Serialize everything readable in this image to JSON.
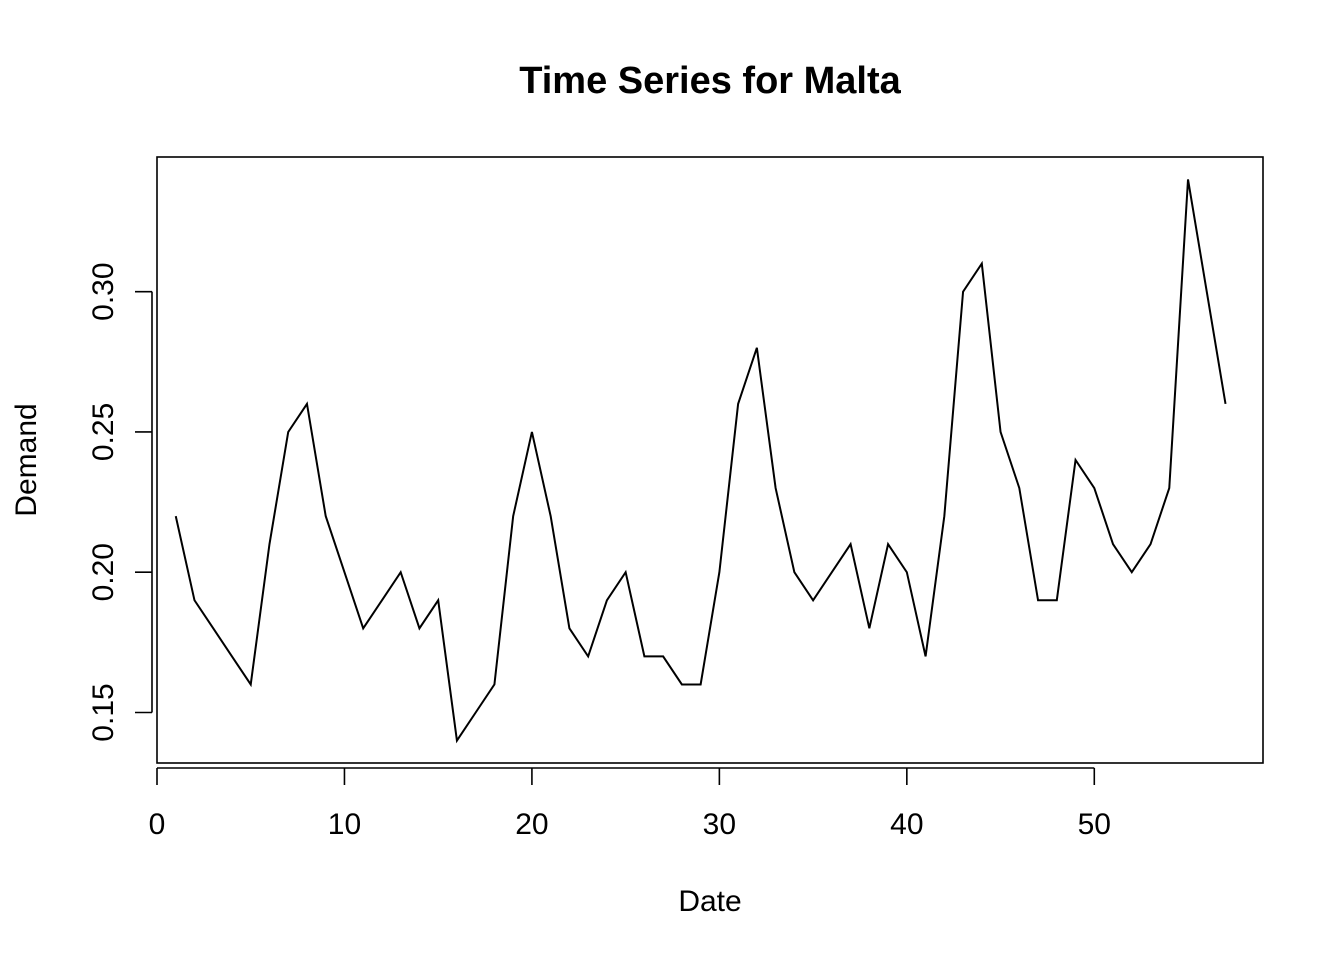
{
  "chart_data": {
    "type": "line",
    "title": "Time Series for Malta",
    "xlabel": "Date",
    "ylabel": "Demand",
    "xlim": [
      0,
      59
    ],
    "ylim": [
      0.132,
      0.348
    ],
    "x_ticks": [
      0,
      10,
      20,
      30,
      40,
      50
    ],
    "x_tick_labels": [
      "0",
      "10",
      "20",
      "30",
      "40",
      "50"
    ],
    "y_ticks": [
      0.15,
      0.2,
      0.25,
      0.3
    ],
    "y_tick_labels": [
      "0.15",
      "0.20",
      "0.25",
      "0.30"
    ],
    "grid": false,
    "series": [
      {
        "x": [
          1,
          2,
          3,
          4,
          5,
          6,
          7,
          8,
          9,
          10,
          11,
          12,
          13,
          14,
          15,
          16,
          17,
          18,
          19,
          20,
          21,
          22,
          23,
          24,
          25,
          26,
          27,
          28,
          29,
          30,
          31,
          32,
          33,
          34,
          35,
          36,
          37,
          38,
          39,
          40,
          41,
          42,
          43,
          44,
          45,
          46,
          47,
          48,
          49,
          50,
          51,
          52,
          53,
          54,
          55,
          56,
          57
        ],
        "values": [
          0.22,
          0.19,
          0.18,
          0.17,
          0.16,
          0.21,
          0.25,
          0.26,
          0.22,
          0.2,
          0.18,
          0.19,
          0.2,
          0.18,
          0.19,
          0.14,
          0.15,
          0.16,
          0.22,
          0.25,
          0.22,
          0.18,
          0.17,
          0.19,
          0.2,
          0.17,
          0.17,
          0.16,
          0.16,
          0.2,
          0.26,
          0.28,
          0.23,
          0.2,
          0.19,
          0.2,
          0.21,
          0.18,
          0.21,
          0.2,
          0.17,
          0.22,
          0.3,
          0.31,
          0.25,
          0.23,
          0.19,
          0.19,
          0.24,
          0.23,
          0.21,
          0.2,
          0.21,
          0.23,
          0.34,
          0.3,
          0.26
        ]
      }
    ]
  }
}
